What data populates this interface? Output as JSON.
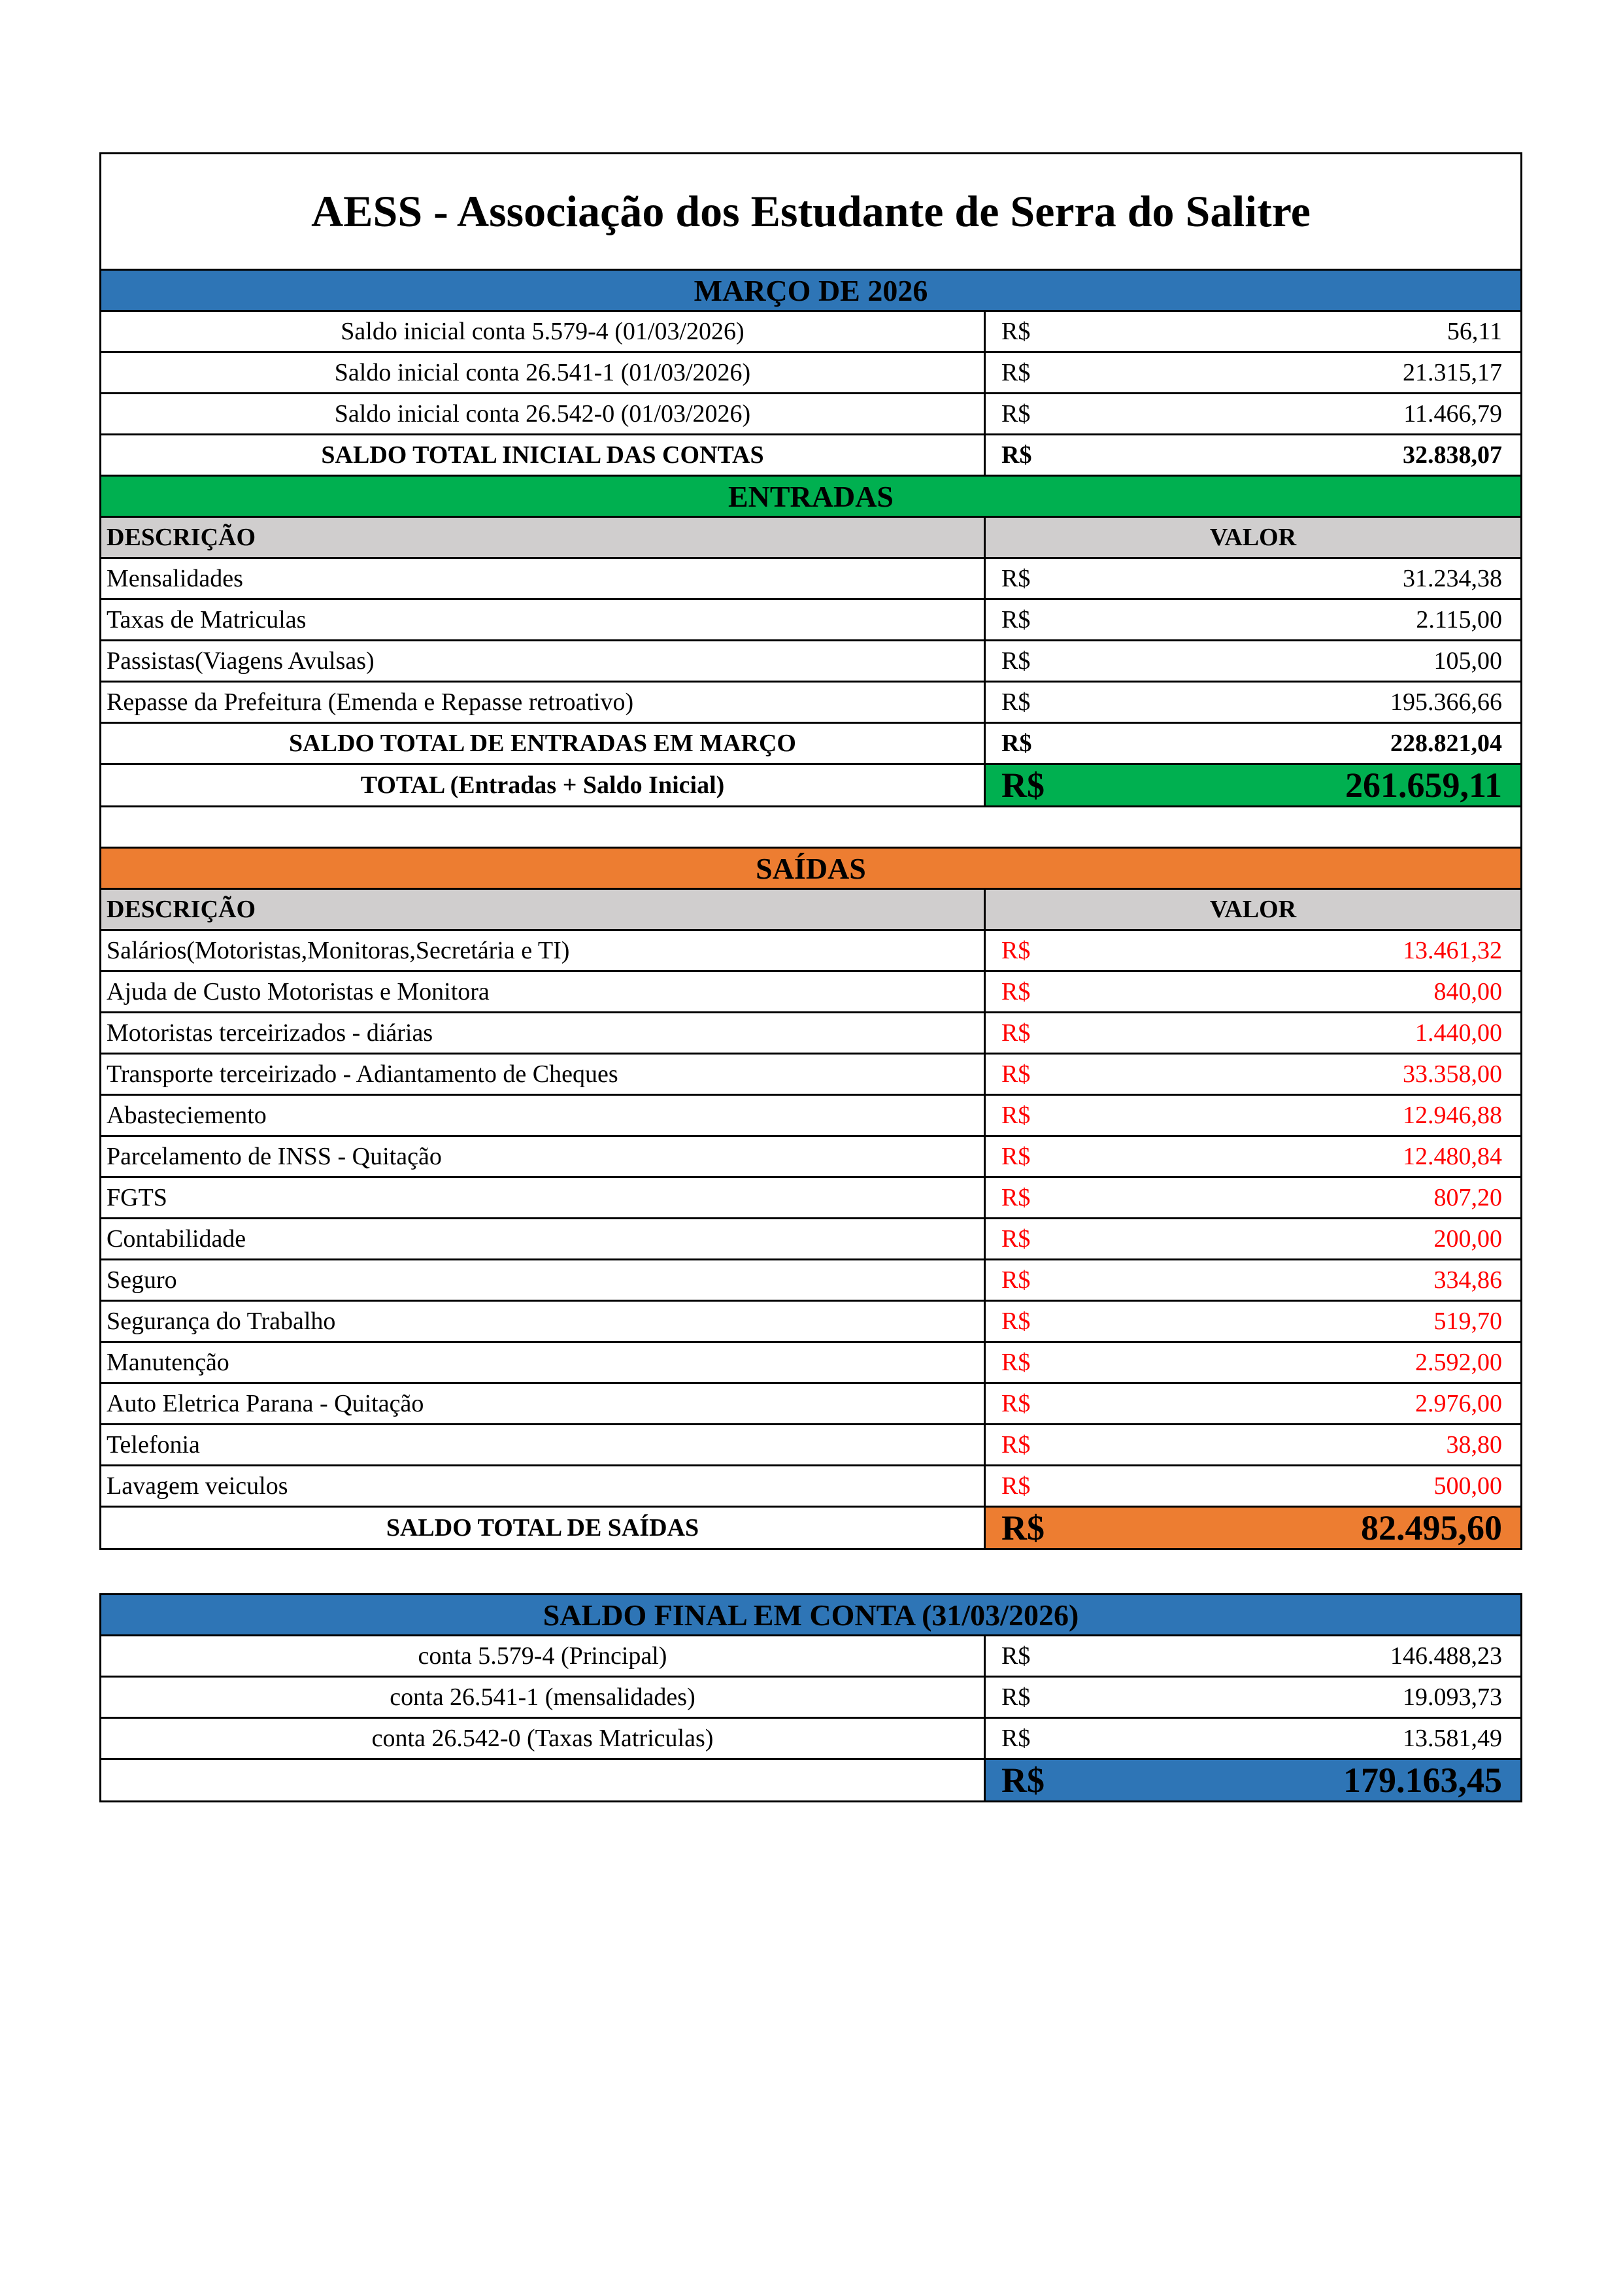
{
  "header": {
    "title": "AESS - Associação dos Estudante de Serra do Salitre"
  },
  "period": "MARÇO DE 2026",
  "opening_balances": {
    "rows": [
      {
        "label": "Saldo inicial conta 5.579-4 (01/03/2026)",
        "currency": "R$",
        "value": "56,11"
      },
      {
        "label": "Saldo inicial conta 26.541-1 (01/03/2026)",
        "currency": "R$",
        "value": "21.315,17"
      },
      {
        "label": "Saldo inicial conta 26.542-0  (01/03/2026)",
        "currency": "R$",
        "value": "11.466,79"
      }
    ],
    "total": {
      "label": "SALDO TOTAL INICIAL DAS CONTAS",
      "currency": "R$",
      "value": "32.838,07"
    }
  },
  "entradas": {
    "title": "ENTRADAS",
    "columns": [
      "DESCRIÇÃO",
      "VALOR"
    ],
    "rows": [
      {
        "label": "Mensalidades",
        "currency": "R$",
        "value": "31.234,38"
      },
      {
        "label": "Taxas de Matriculas",
        "currency": "R$",
        "value": "2.115,00"
      },
      {
        "label": "Passistas(Viagens Avulsas)",
        "currency": "R$",
        "value": "105,00"
      },
      {
        "label": "Repasse da Prefeitura (Emenda e Repasse retroativo)",
        "currency": "R$",
        "value": "195.366,66"
      }
    ],
    "total": {
      "label": "SALDO TOTAL  DE ENTRADAS EM MARÇO",
      "currency": "R$",
      "value": "228.821,04"
    },
    "grand_total": {
      "label": "TOTAL  (Entradas + Saldo Inicial)",
      "currency": "R$",
      "value": "261.659,11"
    }
  },
  "saidas": {
    "title": "SAÍDAS",
    "columns": [
      "DESCRIÇÃO",
      "VALOR"
    ],
    "rows": [
      {
        "label": "Salários(Motoristas,Monitoras,Secretária e TI)",
        "currency": "R$",
        "value": "13.461,32"
      },
      {
        "label": "Ajuda de Custo Motoristas e Monitora",
        "currency": "R$",
        "value": "840,00"
      },
      {
        "label": "Motoristas terceirizados - diárias",
        "currency": "R$",
        "value": "1.440,00"
      },
      {
        "label": "Transporte terceirizado - Adiantamento de Cheques",
        "currency": "R$",
        "value": "33.358,00"
      },
      {
        "label": "Abasteciemento",
        "currency": "R$",
        "value": "12.946,88"
      },
      {
        "label": "Parcelamento de INSS - Quitação",
        "currency": "R$",
        "value": "12.480,84"
      },
      {
        "label": "FGTS",
        "currency": "R$",
        "value": "807,20"
      },
      {
        "label": "Contabilidade",
        "currency": "R$",
        "value": "200,00"
      },
      {
        "label": "Seguro",
        "currency": "R$",
        "value": "334,86"
      },
      {
        "label": "Segurança do Trabalho",
        "currency": "R$",
        "value": "519,70"
      },
      {
        "label": "Manutenção",
        "currency": "R$",
        "value": "2.592,00"
      },
      {
        "label": "Auto Eletrica Parana - Quitação",
        "currency": "R$",
        "value": "2.976,00"
      },
      {
        "label": "Telefonia",
        "currency": "R$",
        "value": "38,80"
      },
      {
        "label": "Lavagem veiculos",
        "currency": "R$",
        "value": "500,00"
      }
    ],
    "total": {
      "label": "SALDO TOTAL DE SAÍDAS",
      "currency": "R$",
      "value": "82.495,60"
    }
  },
  "saldo_final": {
    "title": "SALDO FINAL EM CONTA (31/03/2026)",
    "rows": [
      {
        "label": "conta 5.579-4 (Principal)",
        "currency": "R$",
        "value": "146.488,23"
      },
      {
        "label": "conta 26.541-1 (mensalidades)",
        "currency": "R$",
        "value": "19.093,73"
      },
      {
        "label": "conta 26.542-0 (Taxas Matriculas)",
        "currency": "R$",
        "value": "13.581,49"
      }
    ],
    "total": {
      "currency": "R$",
      "value": "179.163,45"
    }
  }
}
